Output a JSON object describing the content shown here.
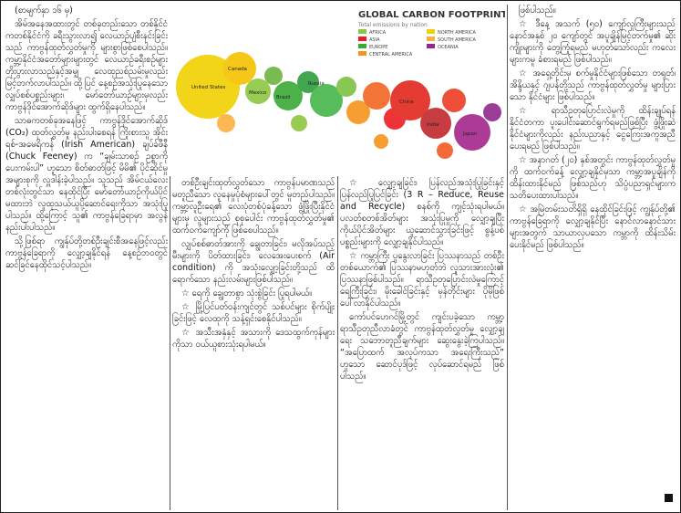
{
  "columns": [
    {
      "paragraphs": [
        "(စာမျက်နှာ ၁၆ မှ)",
        "အိမ်အနေအထားတွင် တစ်ခုတည်းသော တစ်နိုင်ငံကတစ်နိုင်ငံကို ခရီးသွားလာ၍ လေယာဉ်ပျံစီးနင်းခြင်းသည် ကာဗွန်ထုတ်လွှတ်မှုကို များစွာဖြစ်စေပါသည်။ ကမ္ဘာ့နိုင်ငံအတော်များများတွင် လေယာဉ်ခရီးစဉ်များ တိုးပွားလာသည်နှင့်အမျှ လေထုညစ်ညမ်းမှုလည်း မြင့်တက်လာပါသည်။ ထို့ပြင် နေ့စဉ်အသုံးပြုနေသော လျှပ်စစ်ပစ္စည်းများ၊ မော်တော်ယာဉ်များမှလည်း ကာဗွန်ဒိုင်အောက်ဆိုဒ်များ ထွက်ရှိနေပါသည်။",
        "သာဓကတစ်ခုအနေဖြင့် ကာဗွန်ဒိုင်အောက်ဆိုဒ် (CO₂) ထုတ်လွှတ်မှု နည်းပါးစေရန် ကြိုးစားသူ အိုင်းရစ်-အမေရိကန် (Irish American) ချပ်ခ်ဖီနီ (Chuck Feeney) က “ချမ်းသာစဉ် ဥစ္စာကို ပေးကမ်းပါ” ဟူသော စိတ်ဓာတ်ဖြင့် မိမိ၏ ပိုင်ဆိုင်မှုအများစုကို လှူဒါန်းခဲ့ပါသည်။ သူသည် အိမ်ငယ်လေးတစ်လုံးတွင်သာ နေထိုင်ပြီး မော်တော်ယာဉ်ကိုယ်ပိုင်မထားဘဲ လူထုသယ်ယူပို့ဆောင်ရေးကိုသာ အသုံးပြုပါသည်။ ထို့ကြောင့် သူ၏ ကာဗွန်ခြေရာမှာ အလွန်နည်းပါးပါသည်။",
        "သို့ဖြစ်ရာ ကျွန်ုပ်တို့တစ်ဦးချင်းစီအနေဖြင့်လည်း ကာဗွန်ခြေရာကို လျှော့ချနိုင်ရန် နေ့စဉ်ဘဝတွင် ဆင်ခြင်နေထိုင်သင့်ပါသည်။"
      ]
    },
    {
      "paragraphs": [
        "တစ်ဦးချင်းထုတ်လွှတ်သော ကာဗွန်ပမာဏသည် မတူညီသော လူနေမှုပုံစံများပေါ်တွင် မူတည်ပါသည်။ ကမ္ဘာ့လူဦးရေ၏ လေးပုံတစ်ပုံခန့်သော ဖွံ့ဖြိုးပြီးနိုင်ငံများမှ လူများသည် စုစုပေါင်း ကာဗွန်ထုတ်လွှတ်မှု၏ ထက်ဝက်ကျော်ကို ဖြစ်စေပါသည်။",
        "လျှပ်စစ်ဓာတ်အားကို ချွေတာခြင်း၊ မလိုအပ်သည့် မီးများကို ပိတ်ထားခြင်း၊ လေအေးပေးစက် (Air condition) ကို အသုံးလျှော့ခြင်းတို့သည် ထိရောက်သော နည်းလမ်းများဖြစ်ပါသည်။",
        "☆ ရေကို ချွေတာစွာ သုံးစွဲခြင်း ပြုရပါမယ်။",
        "☆ မြို့ပြင်ပတ်ဝန်းကျင်တွင် သစ်ပင်များ စိုက်ပျိုးခြင်းဖြင့် လေထုကို သန့်ရှင်းစေနိုင်ပါသည်။",
        "☆ အသီးအနှံနှင့် အသားကို ဒေသထွက်ကုန်များကိုသာ ဝယ်ယူစားသုံးရပါမယ်။"
      ]
    },
    {
      "paragraphs": [
        "☆ လျှော့ချခြင်း၊ ပြန်လည်အသုံးပြုခြင်းနှင့် ပြန်လည်ပြုပြင်ခြင်း (3 R – Reduce, Reuse and Recycle) စနစ်ကို ကျင့်သုံးရပါမယ်။ ပလတ်စတစ်အိတ်များ အသုံးပြုမှုကို လျှော့ချပြီး ကိုယ်ပိုင်အိတ်များ ယူဆောင်သွားခြင်းဖြင့် စွန့်ပစ်ပစ္စည်းများကို လျှော့ချနိုင်ပါသည်။",
        "☆ ကမ္ဘာကြီး ပူနွေးလာခြင်း ပြဿနာသည် တစ်ဦးတစ်ယောက်၏ ပြဿနာမဟုတ်ဘဲ လူသားအားလုံး၏ ပြဿနာဖြစ်ပါသည်။ ရာသီဥတုပြောင်းလဲမှုကြောင့် ရေကြီးခြင်း၊ မိုးခေါင်ခြင်းနှင့် မုန်တိုင်းများ ပိုမိုဖြစ်ပေါ်လာနိုင်ပါသည်။",
        "ကော်ပင်ဟေဂင်မြို့တွင် ကျင်းပခဲ့သော ကမ္ဘာ့ရာသီဥတုညီလာခံတွင် ကာဗွန်ထုတ်လွှတ်မှု လျှော့ချရေး သဘောတူညီချက်များ ဆွေးနွေးခဲ့ကြပါသည်။ “အပြောထက် အလုပ်ကသာ အရေးကြီးသည်” ဟူသော ဆောင်ပုဒ်ဖြင့် လုပ်ဆောင်ရမည် ဖြစ်ပါသည်။"
      ]
    },
    {
      "paragraphs": [
        "ဖြစ်ပါသည်။",
        "☆ ဒီနေ့ အသက် (၅၀) ကျော်လူကြီးများသည် နောင်အနှစ် ၂၀ ကျော်တွင် အပူချိန်မြင့်တက်မှု၏ ဆိုးကျိုးများကို တွေ့ကြုံရမည် မဟုတ်သော်လည်း ကလေးများကမူ ခံစားရမည် ဖြစ်ပါသည်။",
        "☆ အရှေ့တိုင်းမှ စက်မှုနိုင်ငံများဖြစ်သော တရုတ်၊ အိန္ဒိယနှင့် ဂျပန်တို့သည် ကာဗွန်ထုတ်လွှတ်မှု များပြားသော နိုင်ငံများ ဖြစ်ပါသည်။",
        "☆ ရာသီဥတုပြောင်းလဲမှုကို ထိန်းချုပ်ရန် နိုင်ငံတကာ ပူးပေါင်းဆောင်ရွက်ရမည်ဖြစ်ပြီး ဖွံ့ဖြိုးဆဲနိုင်ငံများကိုလည်း နည်းပညာနှင့် ငွေကြေးအကူအညီ ပေးရမည် ဖြစ်ပါသည်။",
        "☆ အနာဂတ် (၂၀) နှစ်အတွင်း ကာဗွန်ထုတ်လွှတ်မှုကို ထက်ဝက်ခန့် လျှော့ချနိုင်မှသာ ကမ္ဘာ့အပူချိန်ကို ထိန်းထားနိုင်မည် ဖြစ်သည်ဟု သိပ္ပံပညာရှင်များက သတိပေးထားပါသည်။",
        "☆ အမြဲတမ်းသတိရှိရှိ နေထိုင်ခြင်းဖြင့် ကျွန်ုပ်တို့၏ ကာဗွန်ခြေရာကို လျှော့ချနိုင်ပြီး နောင်လာနောင်သားများအတွက် သာယာလှပသော ကမ္ဘာကို ထိန်းသိမ်းပေးနိုင်မည် ဖြစ်ပါသည်။"
      ]
    }
  ],
  "figure": {
    "title": "GLOBAL CARBON FOOTPRINT",
    "subtitle": "Total emissions by nation",
    "legend": [
      "AFRICA",
      "ASIA",
      "EUROPE",
      "CENTRAL AMERICA",
      "NORTH AMERICA",
      "SOUTH AMERICA",
      "OCEANIA"
    ],
    "labels": [
      "United States",
      "Canada",
      "Mexico",
      "Brazil",
      "Russia",
      "China",
      "India",
      "Japan"
    ]
  }
}
